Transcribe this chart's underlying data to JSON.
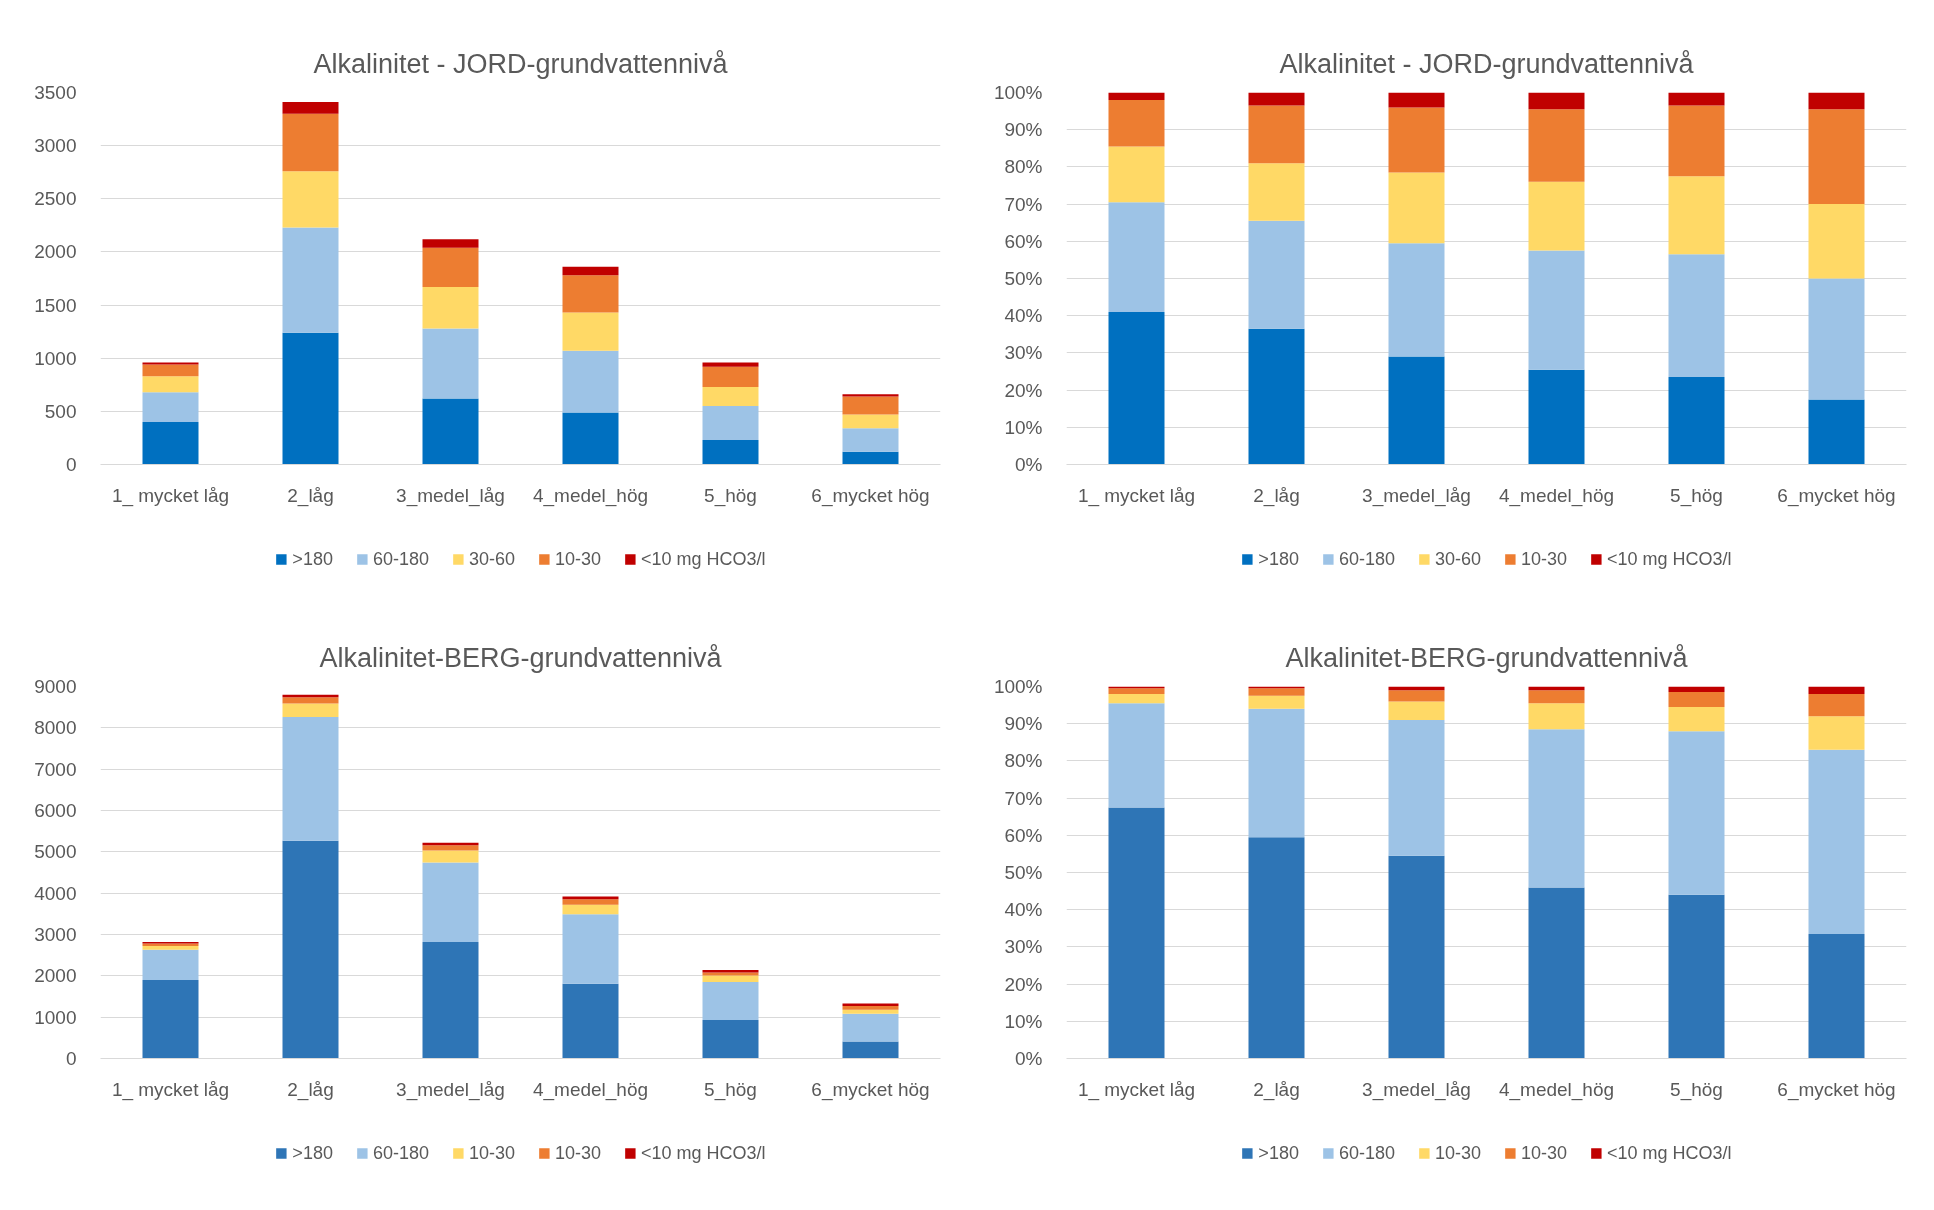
{
  "chart_data": [
    {
      "type": "bar",
      "title": "Alkalinitet - JORD-grundvattennivå",
      "categories": [
        "1_ mycket låg",
        "2_låg",
        "3_medel_låg",
        "4_medel_hög",
        "5_hög",
        "6_mycket hög"
      ],
      "stacked": true,
      "ylim": [
        0,
        3500
      ],
      "yticks": [
        0,
        500,
        1000,
        1500,
        2000,
        2500,
        3000,
        3500
      ],
      "grid": "y",
      "legend": "bottom",
      "series": [
        {
          "name": ">180",
          "color": "#0070c0",
          "values": [
            400,
            1240,
            620,
            490,
            230,
            120
          ]
        },
        {
          "name": "60-180",
          "color": "#9dc3e6",
          "values": [
            280,
            990,
            660,
            580,
            320,
            220
          ]
        },
        {
          "name": "30-60",
          "color": "#ffd966",
          "values": [
            150,
            530,
            390,
            360,
            180,
            130
          ]
        },
        {
          "name": "10-30",
          "color": "#ed7d31",
          "values": [
            110,
            540,
            370,
            350,
            190,
            170
          ]
        },
        {
          "name": "<10 mg HCO3/l",
          "color": "#c00000",
          "values": [
            20,
            110,
            80,
            80,
            40,
            20
          ]
        }
      ]
    },
    {
      "type": "bar",
      "title": "Alkalinitet - JORD-grundvattennivå",
      "categories": [
        "1_ mycket låg",
        "2_låg",
        "3_medel_låg",
        "4_medel_hög",
        "5_hög",
        "6_mycket hög"
      ],
      "stacked": true,
      "ylim": [
        0,
        100
      ],
      "yticks": [
        {
          "value": 0,
          "label": "0%"
        },
        {
          "value": 10,
          "label": "10%"
        },
        {
          "value": 20,
          "label": "20%"
        },
        {
          "value": 30,
          "label": "30%"
        },
        {
          "value": 40,
          "label": "40%"
        },
        {
          "value": 50,
          "label": "50%"
        },
        {
          "value": 60,
          "label": "60%"
        },
        {
          "value": 70,
          "label": "70%"
        },
        {
          "value": 80,
          "label": "80%"
        },
        {
          "value": 90,
          "label": "90%"
        },
        {
          "value": 100,
          "label": "100%"
        }
      ],
      "grid": "y",
      "legend": "bottom",
      "series": [
        {
          "name": ">180",
          "color": "#0070c0",
          "values": [
            41,
            36.5,
            29,
            25.5,
            23.5,
            17.5
          ]
        },
        {
          "name": "60-180",
          "color": "#9dc3e6",
          "values": [
            29.5,
            29,
            30.5,
            32,
            33,
            32.5
          ]
        },
        {
          "name": "30-60",
          "color": "#ffd966",
          "values": [
            15,
            15.5,
            19,
            18.5,
            21,
            20
          ]
        },
        {
          "name": "10-30",
          "color": "#ed7d31",
          "values": [
            12.5,
            15.5,
            17.5,
            19.5,
            19,
            25.5
          ]
        },
        {
          "name": "<10 mg HCO3/l",
          "color": "#c00000",
          "values": [
            2,
            3.5,
            4,
            4.5,
            3.5,
            4.5
          ]
        }
      ]
    },
    {
      "type": "bar",
      "title": "Alkalinitet-BERG-grundvattennivå",
      "categories": [
        "1_ mycket låg",
        "2_låg",
        "3_medel_låg",
        "4_medel_hög",
        "5_hög",
        "6_mycket hög"
      ],
      "stacked": true,
      "ylim": [
        0,
        9000
      ],
      "yticks": [
        0,
        1000,
        2000,
        3000,
        4000,
        5000,
        6000,
        7000,
        8000,
        9000
      ],
      "grid": "y",
      "legend": "bottom",
      "series": [
        {
          "name": ">180",
          "color": "#2e75b6",
          "values": [
            1900,
            5270,
            2820,
            1810,
            930,
            410
          ]
        },
        {
          "name": "60-180",
          "color": "#9dc3e6",
          "values": [
            730,
            2990,
            1920,
            1680,
            920,
            670
          ]
        },
        {
          "name": "10-30",
          "color": "#ffd966",
          "values": [
            90,
            330,
            290,
            230,
            160,
            100
          ]
        },
        {
          "name": "10-30",
          "color": "#ed7d31",
          "values": [
            60,
            150,
            130,
            130,
            70,
            90
          ]
        },
        {
          "name": "<10 mg HCO3/l",
          "color": "#c00000",
          "values": [
            40,
            60,
            60,
            70,
            60,
            60
          ]
        }
      ]
    },
    {
      "type": "bar",
      "title": "Alkalinitet-BERG-grundvattennivå",
      "categories": [
        "1_ mycket låg",
        "2_låg",
        "3_medel_låg",
        "4_medel_hög",
        "5_hög",
        "6_mycket hög"
      ],
      "stacked": true,
      "ylim": [
        0,
        100
      ],
      "yticks": [
        {
          "value": 0,
          "label": "0%"
        },
        {
          "value": 10,
          "label": "10%"
        },
        {
          "value": 20,
          "label": "20%"
        },
        {
          "value": 30,
          "label": "30%"
        },
        {
          "value": 40,
          "label": "40%"
        },
        {
          "value": 50,
          "label": "50%"
        },
        {
          "value": 60,
          "label": "60%"
        },
        {
          "value": 70,
          "label": "70%"
        },
        {
          "value": 80,
          "label": "80%"
        },
        {
          "value": 90,
          "label": "90%"
        },
        {
          "value": 100,
          "label": "100%"
        }
      ],
      "grid": "y",
      "legend": "bottom",
      "series": [
        {
          "name": ">180",
          "color": "#2e75b6",
          "values": [
            67.5,
            59.5,
            54.5,
            46,
            44,
            33.5
          ]
        },
        {
          "name": "60-180",
          "color": "#9dc3e6",
          "values": [
            28,
            34.5,
            36.5,
            42.5,
            44,
            49.5
          ]
        },
        {
          "name": "10-30",
          "color": "#ffd966",
          "values": [
            2.5,
            3.5,
            5,
            7,
            6.5,
            9
          ]
        },
        {
          "name": "10-30",
          "color": "#ed7d31",
          "values": [
            1.5,
            2,
            3,
            3.5,
            4,
            6
          ]
        },
        {
          "name": "<10 mg HCO3/l",
          "color": "#c00000",
          "values": [
            0.5,
            0.5,
            1,
            1,
            1.5,
            2
          ]
        }
      ]
    }
  ]
}
